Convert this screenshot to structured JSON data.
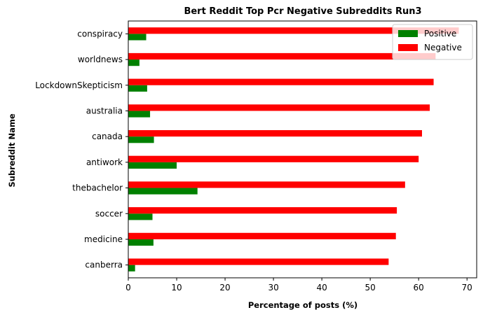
{
  "chart_data": {
    "type": "bar",
    "orientation": "horizontal",
    "title": "Bert Reddit Top Pcr Negative Subreddits Run3",
    "xlabel": "Percentage of posts (%)",
    "ylabel": "Subreddit Name",
    "categories": [
      "canberra",
      "medicine",
      "soccer",
      "thebachelor",
      "antiwork",
      "canada",
      "australia",
      "LockdownSkepticism",
      "worldnews",
      "conspiracy"
    ],
    "series": [
      {
        "name": "Positive",
        "color": "#008000",
        "values": [
          1.4,
          5.2,
          5.0,
          14.3,
          10.0,
          5.3,
          4.5,
          3.9,
          2.3,
          3.7
        ]
      },
      {
        "name": "Negative",
        "color": "#ff0000",
        "values": [
          53.8,
          55.3,
          55.5,
          57.2,
          60.0,
          60.7,
          62.3,
          63.1,
          63.5,
          68.3
        ]
      }
    ],
    "xlim": [
      0,
      72
    ],
    "xticks": [
      0,
      10,
      20,
      30,
      40,
      50,
      60,
      70
    ],
    "grid": false,
    "legend": "top-right"
  }
}
